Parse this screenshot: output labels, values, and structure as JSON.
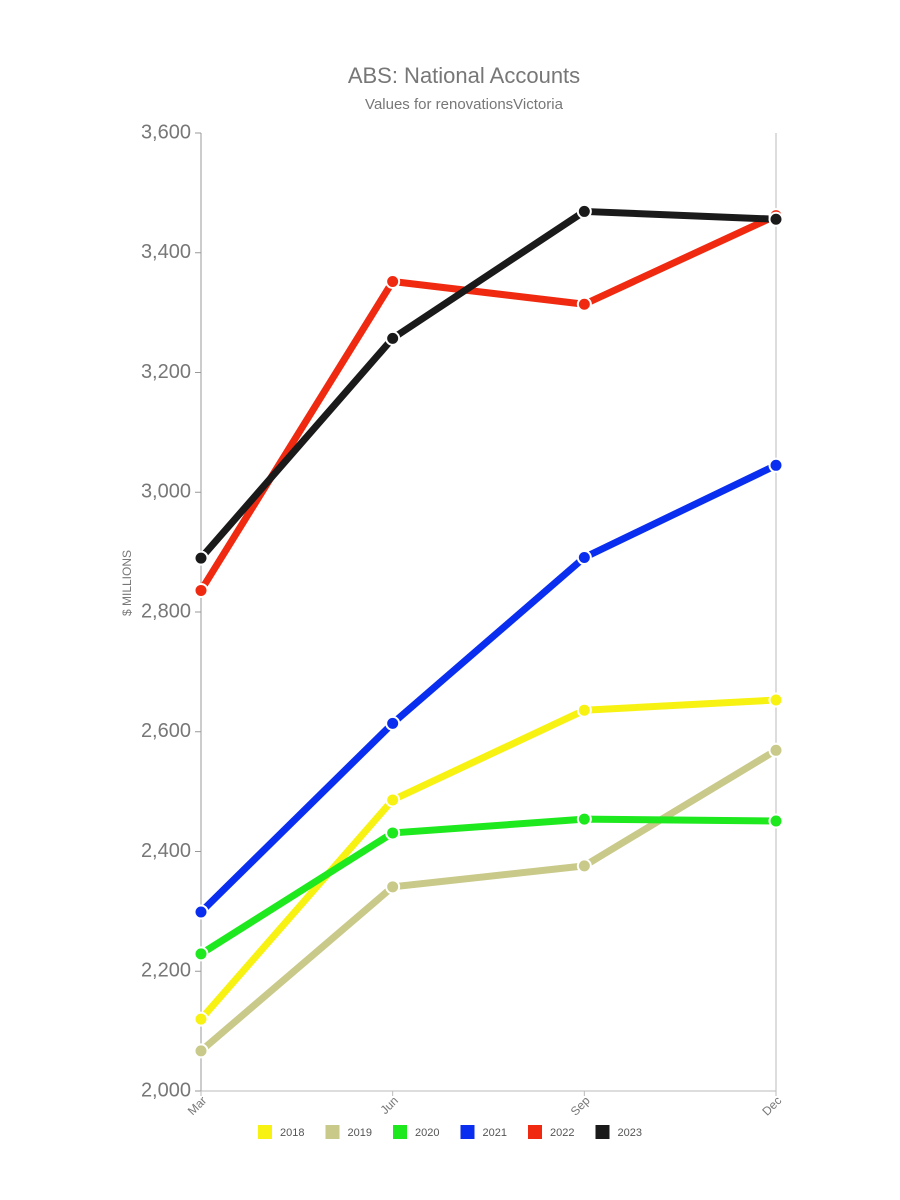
{
  "chart_data": {
    "type": "line",
    "title": "ABS: National Accounts",
    "subtitle": "Values for renovationsVictoria",
    "y_label": "$ MILLIONS",
    "categories": [
      "Mar",
      "Jun",
      "Sep",
      "Dec"
    ],
    "series": [
      {
        "name": "2018",
        "color": "#f7f211",
        "values": [
          2120,
          2486,
          2636,
          2653
        ]
      },
      {
        "name": "2019",
        "color": "#c9c98a",
        "values": [
          2067,
          2341,
          2376,
          2569
        ]
      },
      {
        "name": "2020",
        "color": "#1ee81e",
        "values": [
          2229,
          2431,
          2454,
          2451
        ]
      },
      {
        "name": "2021",
        "color": "#0a2ef0",
        "values": [
          2299,
          2614,
          2891,
          3045
        ]
      },
      {
        "name": "2022",
        "color": "#f02a10",
        "values": [
          2836,
          3352,
          3314,
          3462
        ]
      },
      {
        "name": "2023",
        "color": "#1a1a1a",
        "values": [
          2890,
          3257,
          3469,
          3456
        ]
      }
    ],
    "ylim": [
      2000,
      3600
    ],
    "yticks": [
      {
        "value": 2000,
        "label": "2,000"
      },
      {
        "value": 2200,
        "label": "2,200"
      },
      {
        "value": 2400,
        "label": "2,400"
      },
      {
        "value": 2600,
        "label": "2,600"
      },
      {
        "value": 2800,
        "label": "2,800"
      },
      {
        "value": 3000,
        "label": "3,000"
      },
      {
        "value": 3200,
        "label": "3,200"
      },
      {
        "value": 3400,
        "label": "3,400"
      },
      {
        "value": 3600,
        "label": "3,600"
      }
    ],
    "grid": false
  }
}
